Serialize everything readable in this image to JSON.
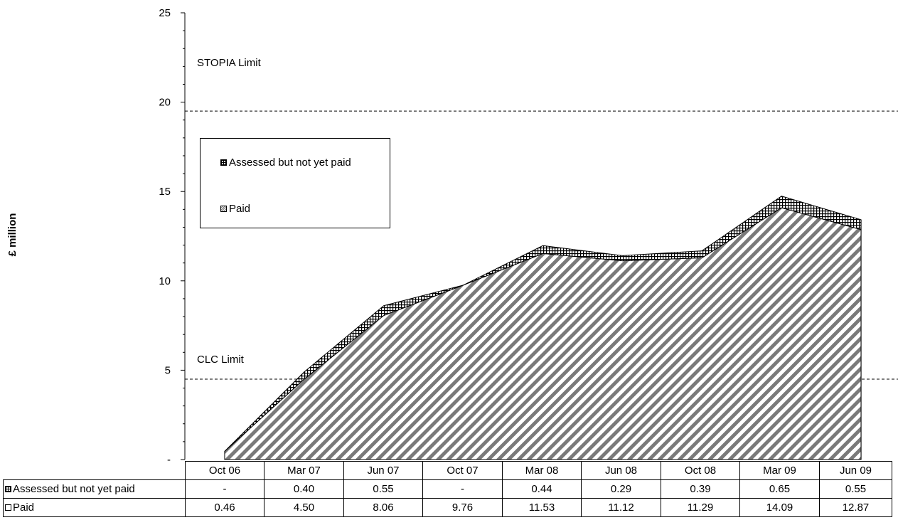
{
  "chart_data": {
    "type": "area",
    "stacked": true,
    "title": "",
    "xlabel": "",
    "ylabel": "£ million",
    "ylim": [
      0,
      25
    ],
    "yticks": [
      "-",
      "5",
      "10",
      "15",
      "20",
      "25"
    ],
    "categories": [
      "Oct 06",
      "Mar 07",
      "Jun 07",
      "Oct 07",
      "Mar 08",
      "Jun 08",
      "Oct 08",
      "Mar 09",
      "Jun 09"
    ],
    "series": [
      {
        "name": "Paid",
        "values": [
          0.46,
          4.5,
          8.06,
          9.76,
          11.53,
          11.12,
          11.29,
          14.09,
          12.87
        ],
        "table_values": [
          "0.46",
          "4.50",
          "8.06",
          "9.76",
          "11.53",
          "11.12",
          "11.29",
          "14.09",
          "12.87"
        ]
      },
      {
        "name": "Assessed but not yet paid",
        "values": [
          0,
          0.4,
          0.55,
          0,
          0.44,
          0.29,
          0.39,
          0.65,
          0.55
        ],
        "table_values": [
          "-",
          "0.40",
          "0.55",
          "-",
          "0.44",
          "0.29",
          "0.39",
          "0.65",
          "0.55"
        ]
      }
    ],
    "reference_lines": [
      {
        "label": "STOPIA Limit",
        "value": 19.5
      },
      {
        "label": "CLC Limit",
        "value": 4.5
      }
    ],
    "legend": {
      "placement": "upper-left",
      "items": [
        "Assessed but not yet paid",
        "Paid"
      ]
    },
    "grid": false,
    "data_table": true
  },
  "colors": {
    "paid_hatch": "#777777",
    "assessed_hatch": "#000000",
    "background": "#ffffff"
  }
}
